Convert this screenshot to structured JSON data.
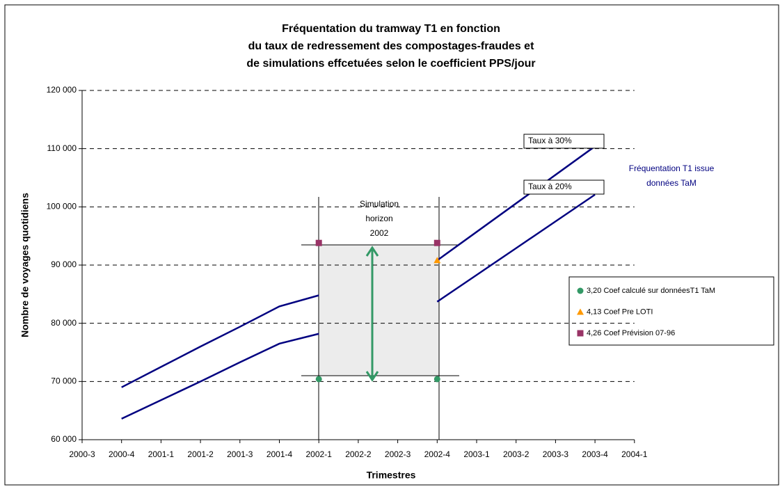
{
  "chart_data": {
    "type": "line",
    "title": [
      "Fréquentation du tramway T1 en fonction",
      "du taux de redressement des compostages-fraudes et",
      "de simulations effcetuées selon le coefficient  PPS/jour"
    ],
    "x_label": "Trimestres",
    "y_label": "Nombre de voyages quotidiens",
    "categories": [
      "2000-3",
      "2000-4",
      "2001-1",
      "2001-2",
      "2001-3",
      "2001-4",
      "2002-1",
      "2002-2",
      "2002-3",
      "2002-4",
      "2003-1",
      "2003-2",
      "2003-3",
      "2003-4",
      "2004-1"
    ],
    "series": [
      {
        "name": "Taux à 30%",
        "type": "line",
        "color": "#000080",
        "values": [
          null,
          69000,
          72500,
          76000,
          79400,
          82900,
          84800,
          null,
          null,
          90800,
          95700,
          100600,
          105500,
          110400,
          null
        ]
      },
      {
        "name": "Taux à 20%",
        "type": "line",
        "color": "#000080",
        "values": [
          null,
          63600,
          66800,
          70000,
          73300,
          76500,
          78200,
          null,
          null,
          83700,
          88300,
          92900,
          97500,
          102100,
          null
        ]
      },
      {
        "name": "3,20 Coef calculé sur donnéesT1 TaM",
        "type": "scatter",
        "marker": "circle",
        "color": "#339966",
        "values": [
          null,
          null,
          null,
          null,
          null,
          null,
          70400,
          null,
          null,
          70400,
          null,
          null,
          null,
          null,
          null
        ]
      },
      {
        "name": "4,13 Coef Pre LOTI",
        "type": "scatter",
        "marker": "triangle",
        "color": "#ff9900",
        "values": [
          null,
          null,
          null,
          null,
          null,
          null,
          null,
          null,
          null,
          90800,
          null,
          null,
          null,
          null,
          null
        ]
      },
      {
        "name": "4,26 Coef Prévision 07-96",
        "type": "scatter",
        "marker": "square",
        "color": "#993366",
        "values": [
          null,
          null,
          null,
          null,
          null,
          null,
          93800,
          null,
          null,
          93800,
          null,
          null,
          null,
          null,
          null
        ]
      }
    ],
    "ylim": [
      60000,
      120000
    ],
    "yticks": [
      {
        "value": 60000,
        "label": "60 000"
      },
      {
        "value": 70000,
        "label": "70 000"
      },
      {
        "value": 80000,
        "label": "80 000"
      },
      {
        "value": 90000,
        "label": "90 000"
      },
      {
        "value": 100000,
        "label": "100 000"
      },
      {
        "value": 110000,
        "label": "110 000"
      },
      {
        "value": 120000,
        "label": "120 000"
      }
    ],
    "grid": true,
    "annotations": [
      "Fréquentation T1 issue",
      "données TaM"
    ],
    "simulation_label": [
      "Simulation",
      "horizon",
      "2002"
    ]
  }
}
